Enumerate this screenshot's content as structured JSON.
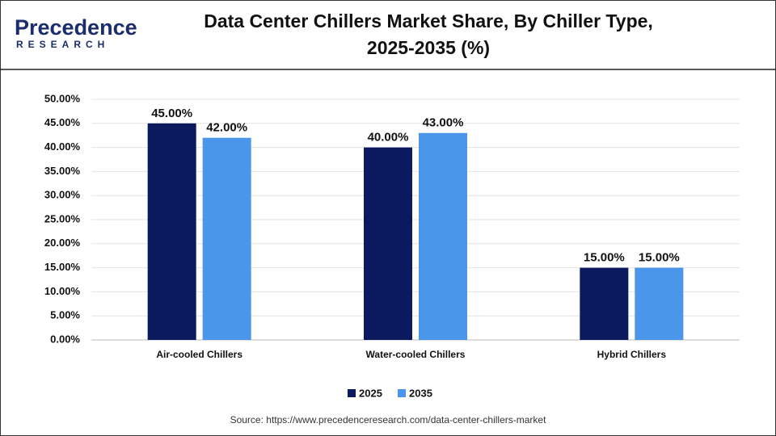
{
  "logo": {
    "name": "Precedence",
    "tagline": "RESEARCH"
  },
  "source": "Source: https://www.precedenceresearch.com/data-center-chillers-market",
  "chart_data": {
    "type": "bar",
    "title": "Data Center Chillers Market Share, By Chiller Type, 2025-2035 (%)",
    "categories": [
      "Air-cooled Chillers",
      "Water-cooled Chillers",
      "Hybrid Chillers"
    ],
    "series": [
      {
        "name": "2025",
        "color": "#0b1a5e",
        "values": [
          45,
          40,
          15
        ],
        "value_labels": [
          "45.00%",
          "40.00%",
          "15.00%"
        ]
      },
      {
        "name": "2035",
        "color": "#4a96ea",
        "values": [
          42,
          43,
          15
        ],
        "value_labels": [
          "42.00%",
          "43.00%",
          "15.00%"
        ]
      }
    ],
    "ylim": [
      0,
      50
    ],
    "yticks": [
      {
        "value": 0,
        "label": "0.00%"
      },
      {
        "value": 5,
        "label": "5.00%"
      },
      {
        "value": 10,
        "label": "10.00%"
      },
      {
        "value": 15,
        "label": "15.00%"
      },
      {
        "value": 20,
        "label": "20.00%"
      },
      {
        "value": 25,
        "label": "25.00%"
      },
      {
        "value": 30,
        "label": "30.00%"
      },
      {
        "value": 35,
        "label": "35.00%"
      },
      {
        "value": 40,
        "label": "40.00%"
      },
      {
        "value": 45,
        "label": "45.00%"
      },
      {
        "value": 50,
        "label": "50.00%"
      }
    ],
    "grid": true,
    "legend": "bottom"
  }
}
